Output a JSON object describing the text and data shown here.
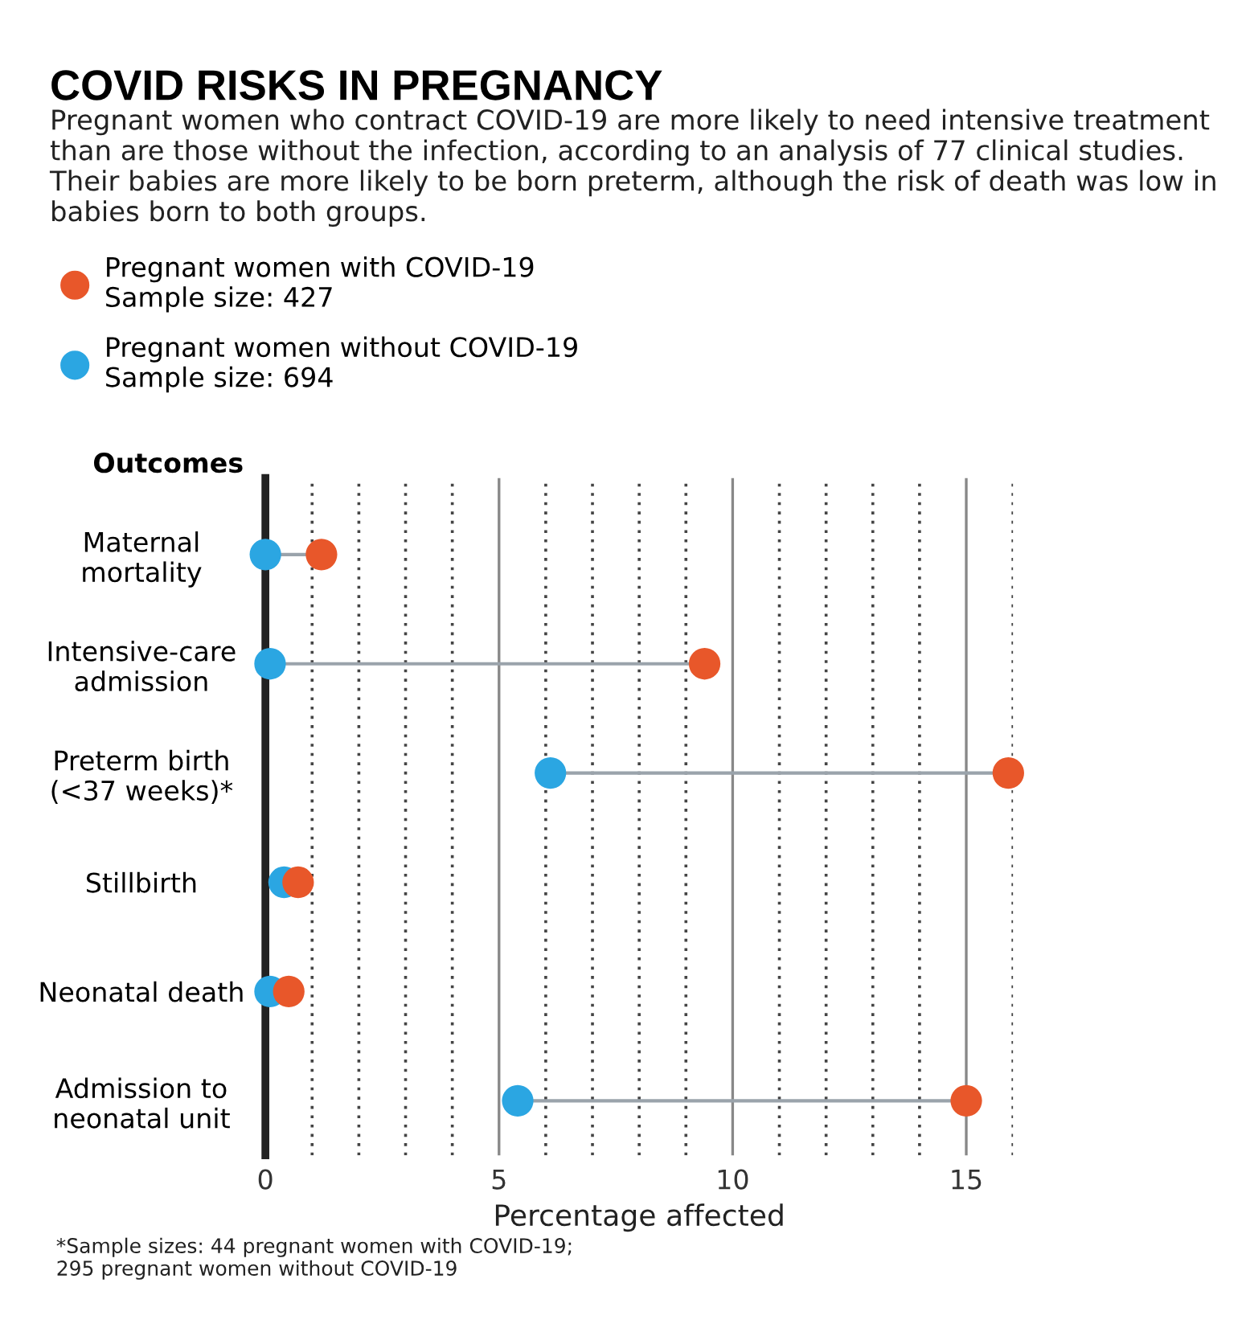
{
  "chart_data": {
    "type": "scatter",
    "title": "COVID RISKS IN PREGNANCY",
    "subtitle": "Pregnant women who contract COVID-19 are more likely to need intensive treatment than are those without the infection, according to an analysis of 77 clinical studies. Their babies are more likely to be born preterm, although the risk of death was low in babies born to both groups.",
    "ylabel": "Outcomes",
    "xlabel": "Percentage affected",
    "categories": [
      "Maternal\nmortality",
      "Intensive-care\nadmission",
      "Preterm birth\n(<37 weeks)*",
      "Stillbirth",
      "Neonatal death",
      "Admission to\nneonatal unit"
    ],
    "series": [
      {
        "name": "Pregnant women without COVID-19\nSample size: 694",
        "color": "#2ba6e2",
        "values": [
          0,
          0.1,
          6.1,
          0.4,
          0.1,
          5.4
        ]
      },
      {
        "name": "Pregnant women with COVID-19\nSample size: 427",
        "color": "#e8572a",
        "values": [
          1.2,
          9.4,
          15.9,
          0.7,
          0.5,
          15.0
        ]
      }
    ],
    "xlim": [
      0,
      16
    ],
    "xticks": [
      0,
      {
        "value": 1,
        "label": null
      },
      {
        "value": 2,
        "label": null
      },
      {
        "value": 3,
        "label": null
      },
      {
        "value": 4,
        "label": null
      },
      5,
      {
        "value": 6,
        "label": null
      },
      {
        "value": 7,
        "label": null
      },
      {
        "value": 8,
        "label": null
      },
      {
        "value": 9,
        "label": null
      },
      10,
      {
        "value": 11,
        "label": null
      },
      {
        "value": 12,
        "label": null
      },
      {
        "value": 13,
        "label": null
      },
      {
        "value": 14,
        "label": null
      },
      15,
      {
        "value": 16,
        "label": null
      }
    ],
    "orientation": "horizontal",
    "grid": "x",
    "legend": "top left",
    "marker": "circle",
    "annotations": [
      "*Sample sizes: 44 pregnant women with COVID-19;\n295 pregnant women without COVID-19"
    ]
  }
}
